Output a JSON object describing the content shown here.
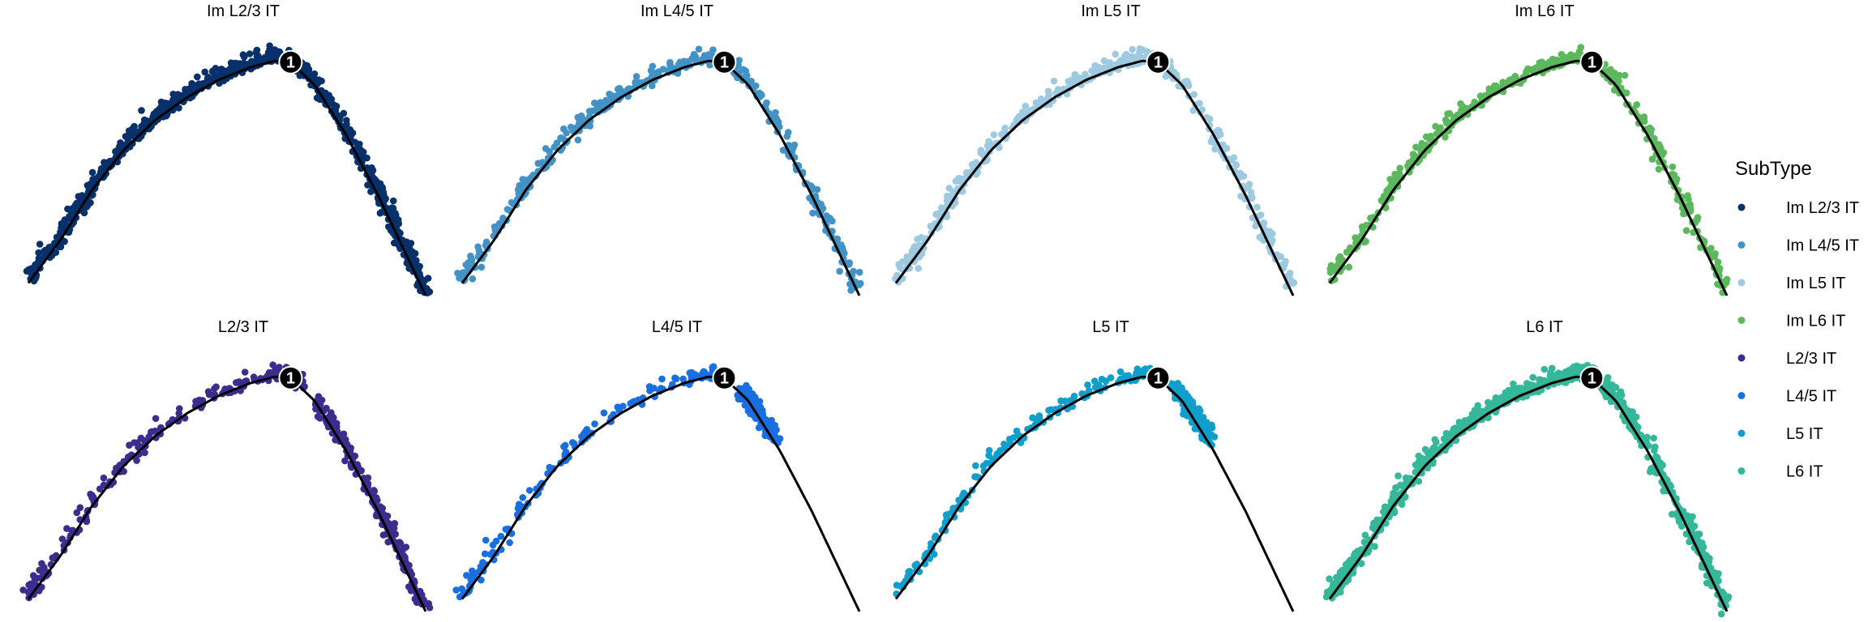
{
  "chart_data": {
    "type": "scatter",
    "title": "",
    "facet_layout": {
      "rows": 2,
      "cols": 4
    },
    "grid": false,
    "axes_visible": false,
    "trajectory": {
      "description_of_curve": "principal curve (black line) shared by all panels",
      "x": [
        0.0,
        0.08,
        0.16,
        0.24,
        0.32,
        0.4,
        0.48,
        0.56,
        0.62,
        0.66,
        0.72,
        0.8,
        0.88,
        0.94,
        1.0
      ],
      "y": [
        0.05,
        0.22,
        0.42,
        0.58,
        0.7,
        0.79,
        0.86,
        0.91,
        0.935,
        0.93,
        0.84,
        0.64,
        0.4,
        0.2,
        0.0
      ],
      "node_label": "1",
      "node_x": 0.66,
      "node_y": 0.93
    },
    "panels": [
      {
        "title": "Im L2/3 IT",
        "series": "Im L2/3 IT",
        "density": "high"
      },
      {
        "title": "Im L4/5 IT",
        "series": "Im L4/5 IT",
        "density": "medium"
      },
      {
        "title": "Im L5 IT",
        "series": "Im L5 IT",
        "density": "medium"
      },
      {
        "title": "Im L6 IT",
        "series": "Im L6 IT",
        "density": "medium"
      },
      {
        "title": "L2/3 IT",
        "series": "L2/3 IT",
        "density": "medium-left"
      },
      {
        "title": "L4/5 IT",
        "series": "L4/5 IT",
        "density": "left"
      },
      {
        "title": "L5 IT",
        "series": "L5 IT",
        "density": "left"
      },
      {
        "title": "L6 IT",
        "series": "L6 IT",
        "density": "high-full"
      }
    ],
    "legend": {
      "title": "SubType",
      "position": "right",
      "entries": [
        {
          "label": "Im L2/3 IT",
          "color": "#08306B"
        },
        {
          "label": "Im L4/5 IT",
          "color": "#4292C6"
        },
        {
          "label": "Im L5 IT",
          "color": "#9ECAE1"
        },
        {
          "label": "Im L6 IT",
          "color": "#5CB85C"
        },
        {
          "label": "L2/3 IT",
          "color": "#3A2D8E"
        },
        {
          "label": "L4/5 IT",
          "color": "#1A6FE0"
        },
        {
          "label": "L5 IT",
          "color": "#109FCC"
        },
        {
          "label": "L6 IT",
          "color": "#35B79A"
        }
      ]
    }
  }
}
